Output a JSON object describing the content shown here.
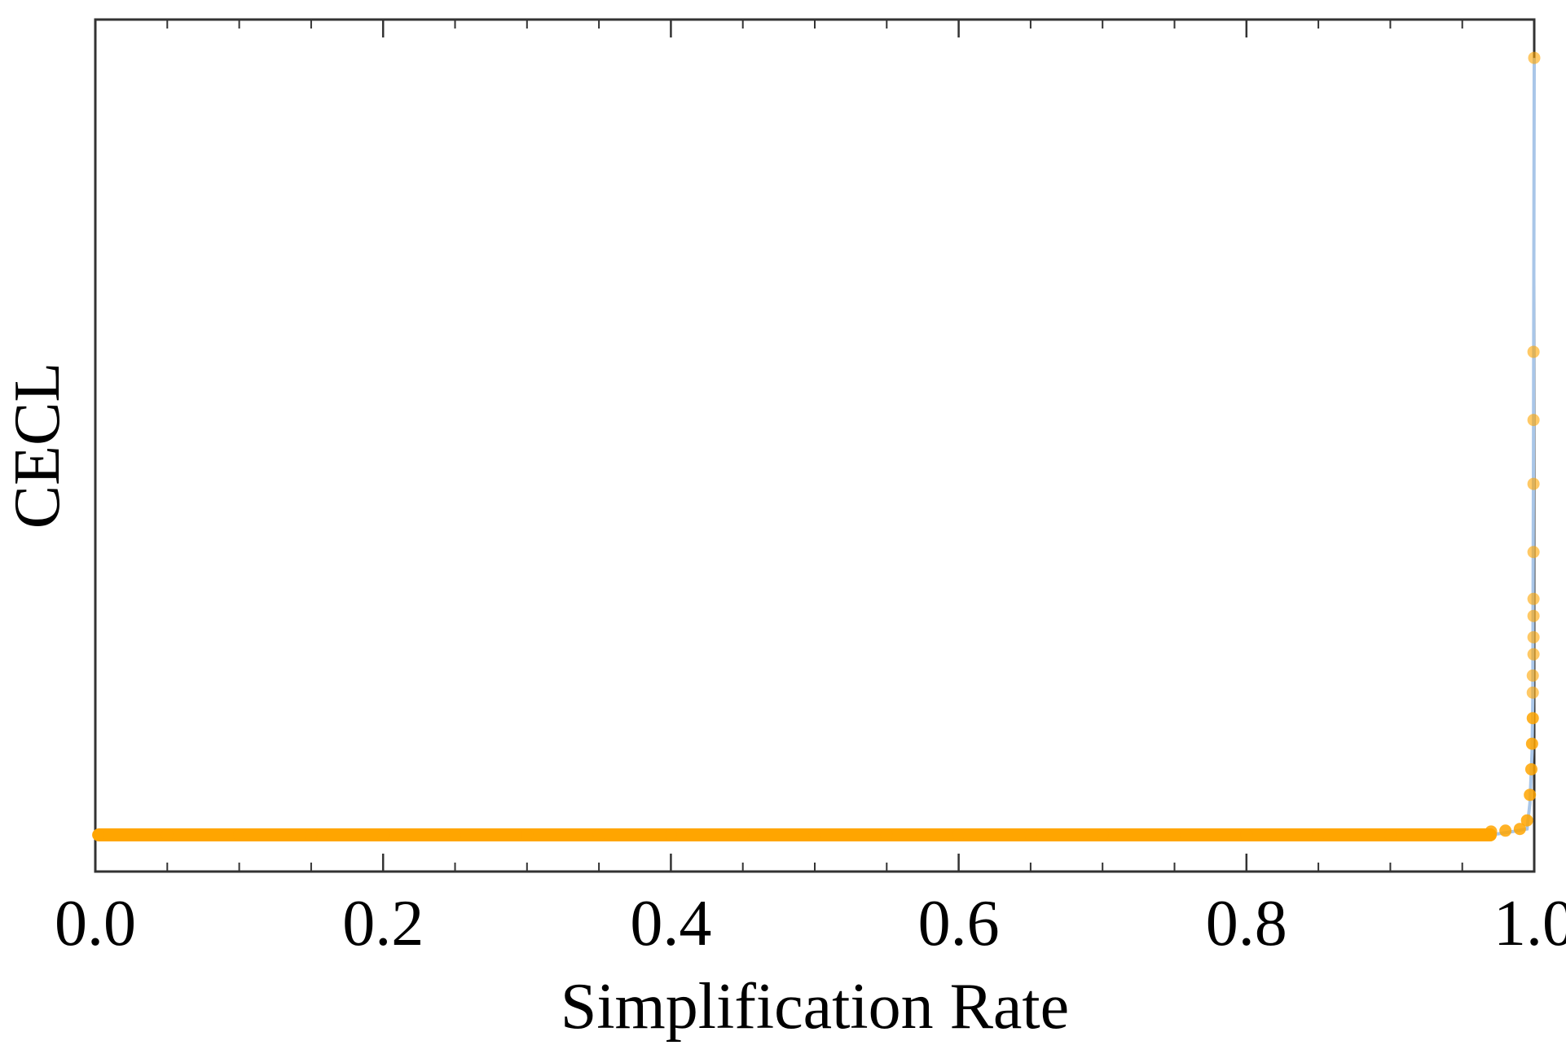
{
  "chart_data": {
    "type": "scatter",
    "title": "",
    "xlabel": "Simplification Rate",
    "ylabel": "CECL",
    "xlim": [
      0.0,
      1.0
    ],
    "ylim": [
      0.0,
      1.0
    ],
    "x_ticks": [
      "0.0",
      "0.2",
      "0.4",
      "0.6",
      "0.8",
      "1.0"
    ],
    "x_tick_values": [
      0.0,
      0.2,
      0.4,
      0.6,
      0.8,
      1.0
    ],
    "y_ticks_labeled": false,
    "grid": false,
    "legend": "none",
    "series": [
      {
        "kind": "line",
        "color": "#a9c6e8",
        "x": [
          0.002,
          0.97,
          0.985,
          0.995,
          0.997,
          0.9985,
          0.999,
          0.9995,
          1.0
        ],
        "y": [
          0.043,
          0.043,
          0.047,
          0.05,
          0.08,
          0.14,
          0.2,
          0.5,
          0.955
        ]
      },
      {
        "kind": "scatter",
        "color": "#ffa500",
        "x": [
          0.002,
          0.05,
          0.1,
          0.15,
          0.2,
          0.25,
          0.3,
          0.35,
          0.4,
          0.45,
          0.5,
          0.55,
          0.6,
          0.65,
          0.7,
          0.75,
          0.8,
          0.85,
          0.9,
          0.95,
          0.97,
          0.98,
          0.99,
          0.995,
          0.997,
          0.998,
          0.9985,
          0.999,
          0.999,
          0.999,
          0.9995,
          0.9995,
          0.9995,
          0.9995,
          0.9995,
          0.9995,
          0.9995,
          0.9995,
          1.0
        ],
        "y": [
          0.043,
          0.043,
          0.043,
          0.043,
          0.043,
          0.043,
          0.043,
          0.043,
          0.043,
          0.043,
          0.043,
          0.043,
          0.043,
          0.043,
          0.043,
          0.043,
          0.043,
          0.043,
          0.043,
          0.043,
          0.047,
          0.048,
          0.05,
          0.06,
          0.09,
          0.12,
          0.15,
          0.18,
          0.21,
          0.23,
          0.255,
          0.275,
          0.3,
          0.32,
          0.375,
          0.455,
          0.53,
          0.61,
          0.955
        ]
      }
    ]
  }
}
